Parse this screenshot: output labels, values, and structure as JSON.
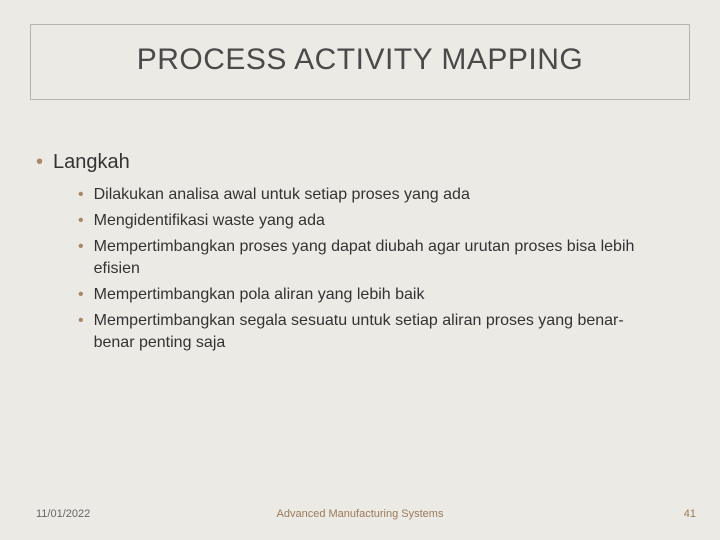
{
  "title": "PROCESS ACTIVITY MAPPING",
  "heading": "Langkah",
  "subitems": [
    "Dilakukan analisa awal untuk setiap proses yang ada",
    "Mengidentifikasi waste yang ada",
    "Mempertimbangkan proses yang dapat diubah agar urutan proses bisa lebih efisien",
    "Mempertimbangkan pola aliran yang lebih baik",
    "Mempertimbangkan segala sesuatu untuk setiap aliran proses yang benar-benar penting saja"
  ],
  "footer": {
    "date": "11/01/2022",
    "center": "Advanced Manufacturing Systems",
    "page": "41"
  },
  "colors": {
    "background": "#eceae5",
    "title_border": "#b8b4aa",
    "title_text": "#4a4a4a",
    "bullet": "#aa8866",
    "body_text": "#333333",
    "footer_date": "#666666",
    "footer_accent": "#9a7a5a"
  }
}
